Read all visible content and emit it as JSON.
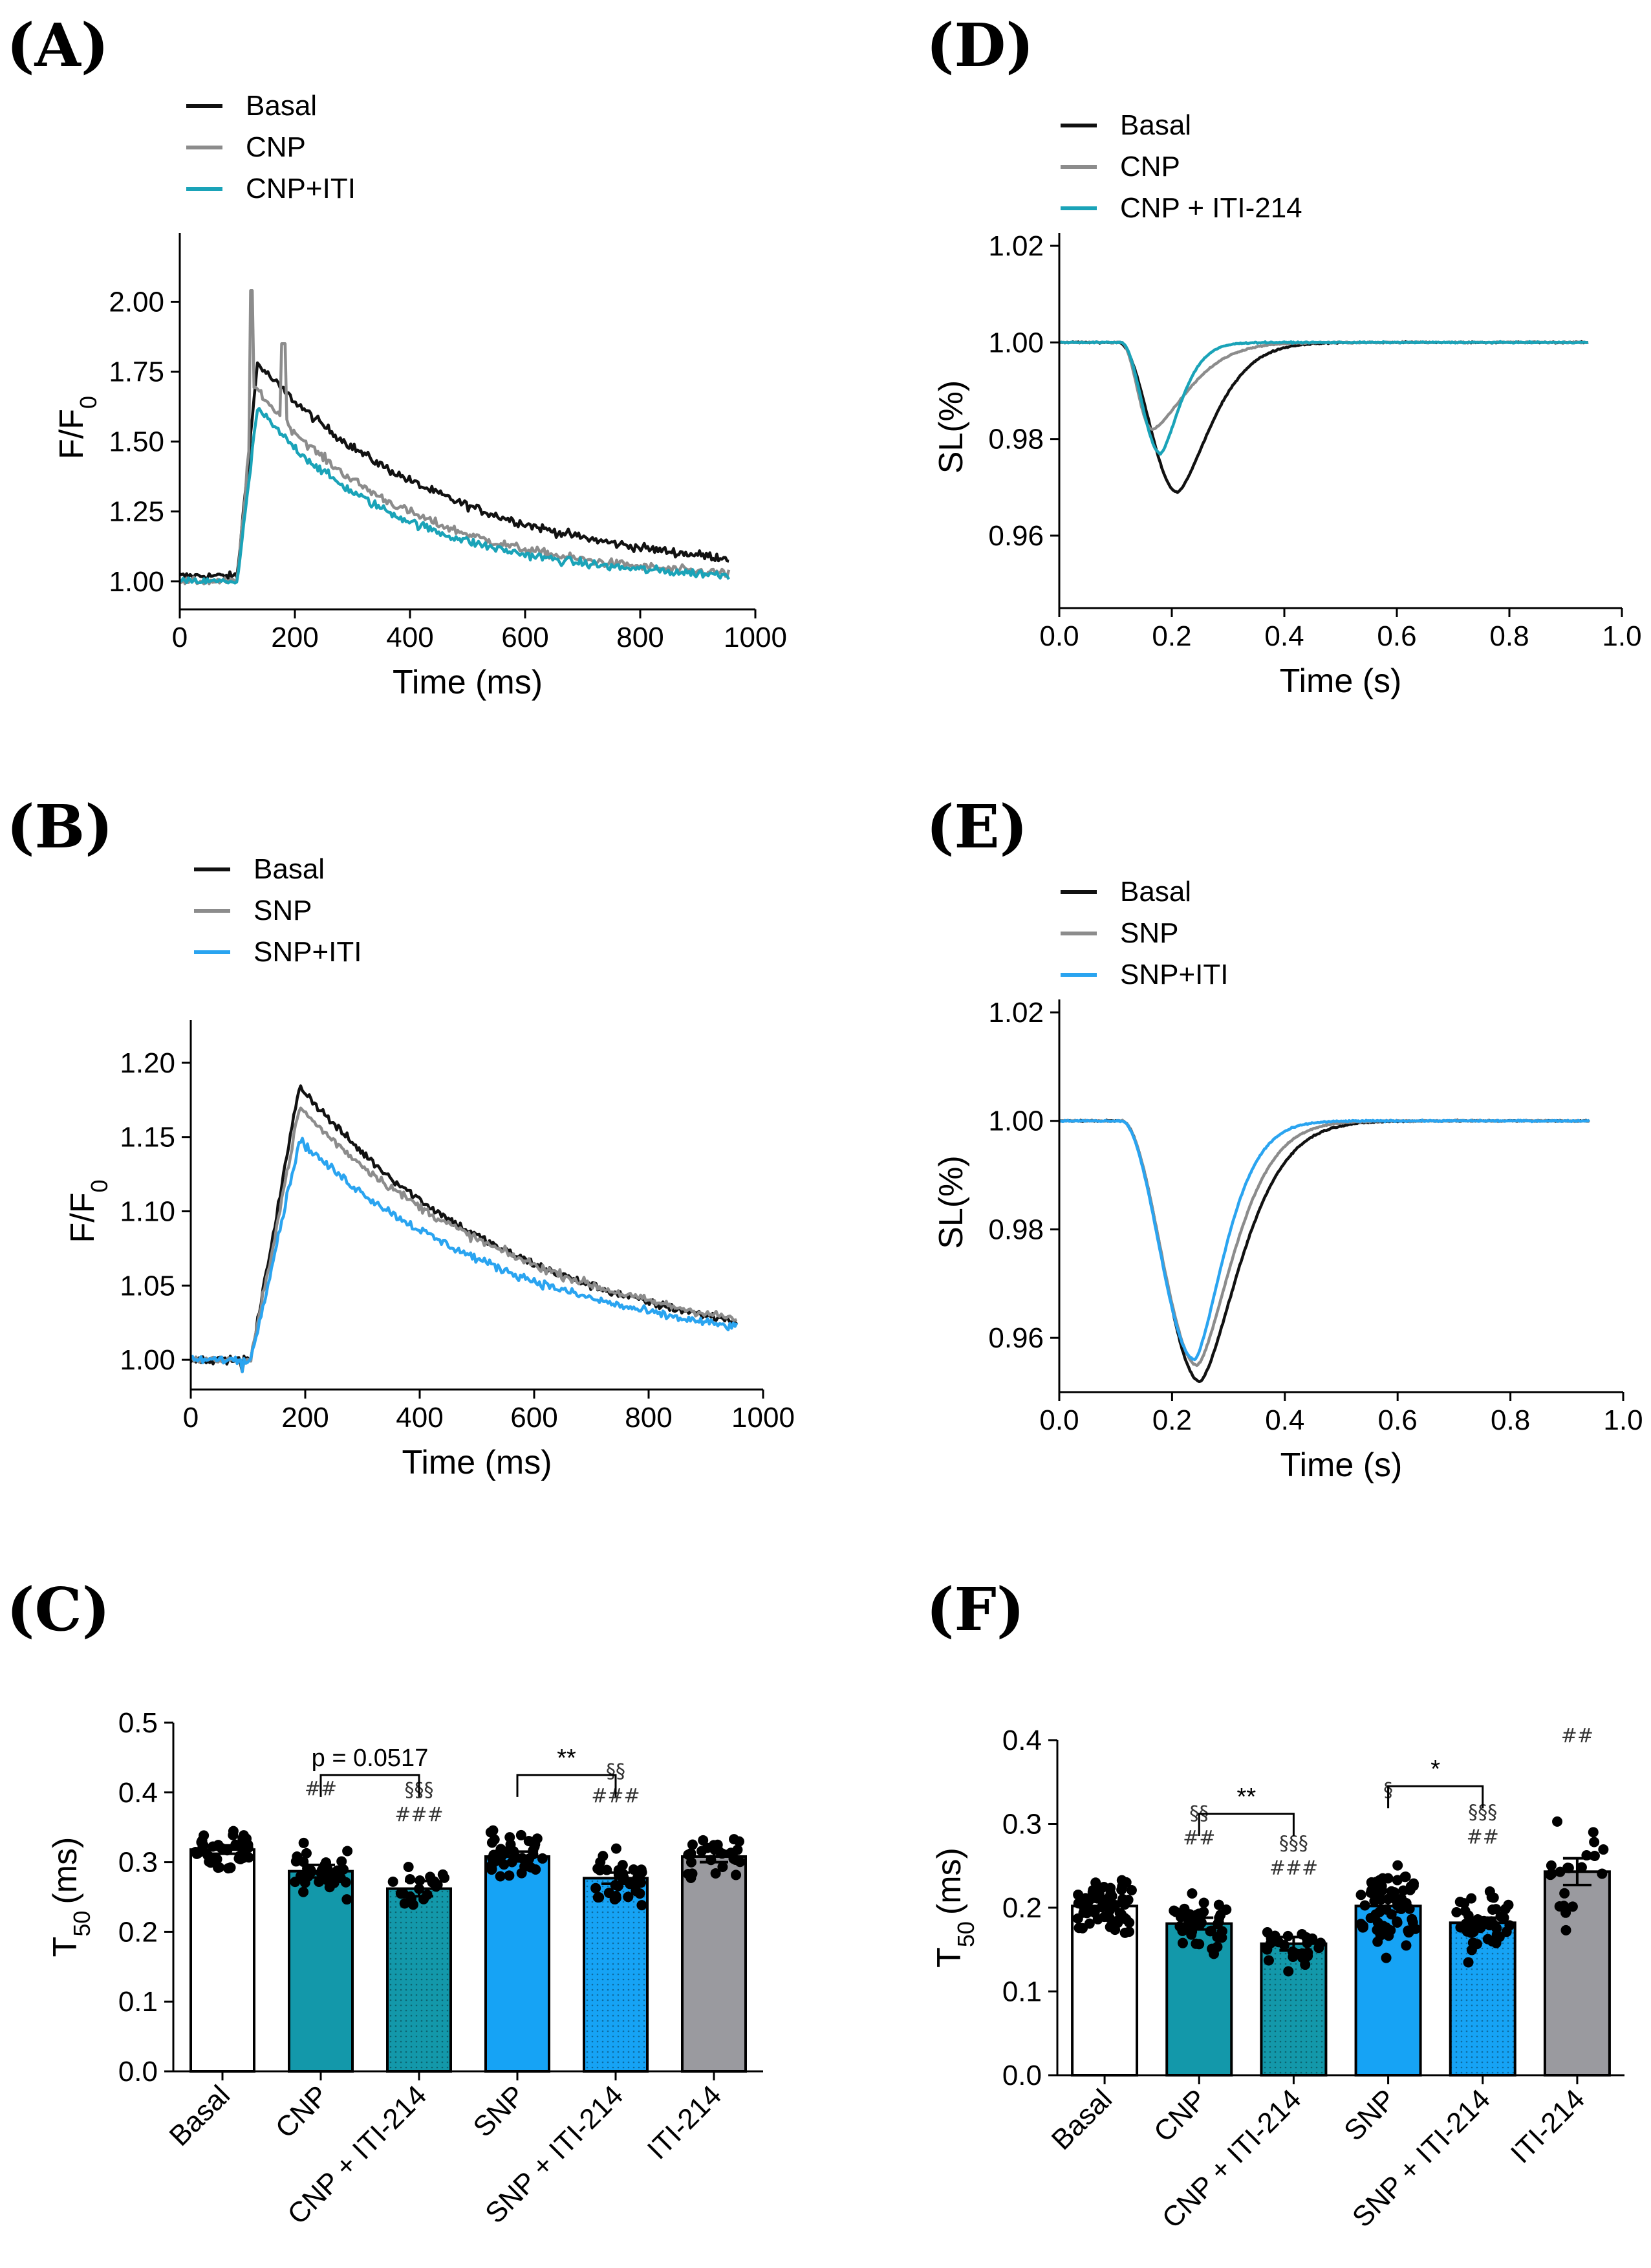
{
  "colors": {
    "black": "#111111",
    "gray": "#8c8c8c",
    "teal": "#1aa3b8",
    "blue": "#2aa4f0",
    "bar_teal": "#1398aa",
    "bar_blue": "#16a3f5",
    "bar_gray": "#9a9a9f",
    "bar_white": "#ffffff"
  },
  "chart_data": [
    {
      "id": "A",
      "panel_label": "(A)",
      "type": "line",
      "xlabel": "Time (ms)",
      "ylabel": "F/F",
      "ylabel_sub": "0",
      "xlim": [
        0,
        1000
      ],
      "ylim": [
        0.9,
        2.2
      ],
      "xticks": [
        0,
        200,
        400,
        600,
        800,
        1000
      ],
      "yticks": [
        1.0,
        1.25,
        1.5,
        1.75,
        2.0
      ],
      "ytick_labels": [
        "1.00",
        "1.25",
        "1.50",
        "1.75",
        "2.00"
      ],
      "series": [
        {
          "name": "Basal",
          "color": "#111111",
          "base": 1.02,
          "onset": 100,
          "rise_end": 135,
          "peak": 1.78,
          "tau": 330,
          "extra": []
        },
        {
          "name": "CNP",
          "color": "#8c8c8c",
          "base": 1.0,
          "onset": 100,
          "rise_end": 130,
          "peak": 1.7,
          "tau": 260,
          "extra": [
            [
              125,
              2.04
            ],
            [
              180,
              1.85
            ]
          ]
        },
        {
          "name": "CNP+ITI",
          "color": "#1aa3b8",
          "base": 1.0,
          "onset": 100,
          "rise_end": 135,
          "peak": 1.62,
          "tau": 250,
          "extra": []
        }
      ]
    },
    {
      "id": "B",
      "panel_label": "(B)",
      "type": "line",
      "xlabel": "Time (ms)",
      "ylabel": "F/F",
      "ylabel_sub": "0",
      "xlim": [
        0,
        1000
      ],
      "ylim": [
        0.98,
        1.22
      ],
      "xticks": [
        0,
        200,
        400,
        600,
        800,
        1000
      ],
      "yticks": [
        1.0,
        1.05,
        1.1,
        1.15,
        1.2
      ],
      "ytick_labels": [
        "1.00",
        "1.05",
        "1.10",
        "1.15",
        "1.20"
      ],
      "series": [
        {
          "name": "Basal",
          "color": "#111111",
          "base": 1.0,
          "onset": 105,
          "rise_end": 190,
          "peak": 1.185,
          "tau": 390,
          "extra": []
        },
        {
          "name": "SNP",
          "color": "#8c8c8c",
          "base": 1.0,
          "onset": 105,
          "rise_end": 190,
          "peak": 1.17,
          "tau": 420,
          "extra": []
        },
        {
          "name": "SNP+ITI",
          "color": "#2aa4f0",
          "base": 1.0,
          "onset": 105,
          "rise_end": 190,
          "peak": 1.148,
          "tau": 400,
          "extra": []
        }
      ]
    },
    {
      "id": "D",
      "panel_label": "(D)",
      "type": "line",
      "xlabel": "Time (s)",
      "ylabel": "SL(%)",
      "xlim": [
        0,
        1.0
      ],
      "ylim": [
        0.945,
        1.02
      ],
      "xticks": [
        0.0,
        0.2,
        0.4,
        0.6,
        0.8,
        1.0
      ],
      "xtick_labels": [
        "0.0",
        "0.2",
        "0.4",
        "0.6",
        "0.8",
        "1.0"
      ],
      "yticks": [
        0.96,
        0.98,
        1.0,
        1.02
      ],
      "ytick_labels": [
        "0.96",
        "0.98",
        "1.00",
        "1.02"
      ],
      "series": [
        {
          "name": "Basal",
          "color": "#111111",
          "onset": 0.105,
          "tmin": 0.21,
          "vmin": 0.969,
          "tau": 0.085
        },
        {
          "name": "CNP",
          "color": "#8c8c8c",
          "onset": 0.11,
          "tmin": 0.165,
          "vmin": 0.982,
          "tau": 0.09
        },
        {
          "name": "CNP + ITI-214",
          "color": "#1aa3b8",
          "onset": 0.11,
          "tmin": 0.18,
          "vmin": 0.977,
          "tau": 0.05
        }
      ]
    },
    {
      "id": "E",
      "panel_label": "(E)",
      "type": "line",
      "xlabel": "Time (s)",
      "ylabel": "SL(%)",
      "xlim": [
        0,
        1.0
      ],
      "ylim": [
        0.95,
        1.02
      ],
      "xticks": [
        0.0,
        0.2,
        0.4,
        0.6,
        0.8,
        1.0
      ],
      "xtick_labels": [
        "0.0",
        "0.2",
        "0.4",
        "0.6",
        "0.8",
        "1.0"
      ],
      "yticks": [
        0.96,
        0.98,
        1.0,
        1.02
      ],
      "ytick_labels": [
        "0.96",
        "0.98",
        "1.00",
        "1.02"
      ],
      "series": [
        {
          "name": "Basal",
          "color": "#111111",
          "onset": 0.11,
          "tmin": 0.25,
          "vmin": 0.952,
          "tau": 0.1
        },
        {
          "name": "SNP",
          "color": "#8c8c8c",
          "onset": 0.11,
          "tmin": 0.245,
          "vmin": 0.955,
          "tau": 0.09
        },
        {
          "name": "SNP+ITI",
          "color": "#2aa4f0",
          "onset": 0.11,
          "tmin": 0.24,
          "vmin": 0.956,
          "tau": 0.075
        }
      ]
    },
    {
      "id": "C",
      "panel_label": "(C)",
      "type": "bar",
      "ylabel": "T",
      "ylabel_sub": "50",
      "ylabel_unit": "(ms)",
      "ylim": [
        0,
        0.5
      ],
      "yticks": [
        0.0,
        0.1,
        0.2,
        0.3,
        0.4,
        0.5
      ],
      "ytick_labels": [
        "0.0",
        "0.1",
        "0.2",
        "0.3",
        "0.4",
        "0.5"
      ],
      "categories": [
        "Basal",
        "CNP",
        "CNP + ITI-214",
        "SNP",
        "SNP + ITI-214",
        "ITI-214"
      ],
      "values": [
        0.318,
        0.287,
        0.262,
        0.308,
        0.277,
        0.308
      ],
      "errors": [
        0.006,
        0.009,
        0.011,
        0.007,
        0.008,
        0.008
      ],
      "spreads": [
        0.03,
        0.04,
        0.035,
        0.035,
        0.04,
        0.03
      ],
      "counts": [
        40,
        36,
        20,
        38,
        34,
        26
      ],
      "fills": [
        "#ffffff",
        "#1398aa",
        "#1398aa",
        "#16a3f5",
        "#16a3f5",
        "#9a9a9f"
      ],
      "dotted": [
        false,
        false,
        true,
        false,
        true,
        false
      ],
      "marks": [
        {
          "bar": 1,
          "lines": [
            "##"
          ]
        },
        {
          "bar": 2,
          "lines": [
            "§§§",
            "###"
          ]
        },
        {
          "bar": 4,
          "lines": [
            "§§",
            "###"
          ]
        }
      ],
      "brackets": [
        {
          "from": 1,
          "to": 2,
          "level": 0.425,
          "label": "p = 0.0517"
        },
        {
          "from": 3,
          "to": 4,
          "level": 0.425,
          "label": "**"
        }
      ]
    },
    {
      "id": "F",
      "panel_label": "(F)",
      "type": "bar",
      "ylabel": "T",
      "ylabel_sub": "50",
      "ylabel_unit": "(ms)",
      "ylim": [
        0,
        0.4
      ],
      "yticks": [
        0.0,
        0.1,
        0.2,
        0.3,
        0.4
      ],
      "ytick_labels": [
        "0.0",
        "0.1",
        "0.2",
        "0.3",
        "0.4"
      ],
      "categories": [
        "Basal",
        "CNP",
        "CNP + ITI-214",
        "SNP",
        "SNP + ITI-214",
        "ITI-214"
      ],
      "values": [
        0.202,
        0.181,
        0.157,
        0.202,
        0.182,
        0.243
      ],
      "errors": [
        0.005,
        0.007,
        0.008,
        0.007,
        0.006,
        0.016
      ],
      "spreads": [
        0.035,
        0.035,
        0.03,
        0.05,
        0.035,
        0.06
      ],
      "counts": [
        60,
        40,
        26,
        64,
        44,
        20
      ],
      "fills": [
        "#ffffff",
        "#1398aa",
        "#1398aa",
        "#16a3f5",
        "#16a3f5",
        "#9a9a9f"
      ],
      "dotted": [
        false,
        false,
        true,
        false,
        true,
        false
      ],
      "marks": [
        {
          "bar": 1,
          "lines": [
            "§§",
            "##"
          ]
        },
        {
          "bar": 2,
          "lines": [
            "§§§",
            "###"
          ]
        },
        {
          "bar": 3,
          "lines": [
            "§"
          ]
        },
        {
          "bar": 4,
          "lines": [
            "§§§",
            "##"
          ]
        },
        {
          "bar": 5,
          "lines": [
            "##"
          ]
        }
      ],
      "brackets": [
        {
          "from": 1,
          "to": 2,
          "level": 0.312,
          "label": "**"
        },
        {
          "from": 3,
          "to": 4,
          "level": 0.345,
          "label": "*"
        }
      ]
    }
  ]
}
